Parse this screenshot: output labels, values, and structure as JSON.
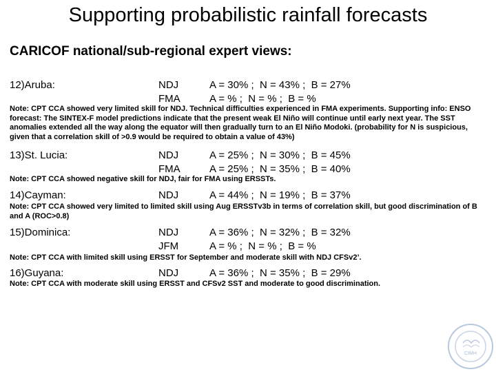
{
  "title": "Supporting probabilistic rainfall forecasts",
  "subtitle": "CARICOF national/sub-regional expert views:",
  "entries": [
    {
      "country": "12)Aruba:",
      "rows": [
        {
          "season": "NDJ",
          "probs": "A = 30% ;  N = 43% ;  B = 27%"
        },
        {
          "season": "FMA",
          "probs": "A = % ;  N = % ;  B = %"
        }
      ],
      "note": "Note: CPT CCA showed very limited skill for NDJ. Technical difficulties experienced in FMA experiments. Supporting info: ENSO forecast: The SINTEX-F model predictions indicate that the present weak El Niño will continue until early next year. The SST anomalies extended all the way along the equator will then gradually turn to an El Niño Modoki. (probability for N is suspicious, given that a correlation skill of >0.9 would be required to obtain a value of  43%)"
    },
    {
      "country": "13)St. Lucia:",
      "rows": [
        {
          "season": "NDJ",
          "probs": "A = 25% ;  N = 30% ;  B = 45%"
        },
        {
          "season": "FMA",
          "probs": "A = 25% ;  N = 35% ;  B = 40%"
        }
      ],
      "note": "Note:  CPT CCA showed negative skill for NDJ, fair for FMA using ERSSTs."
    },
    {
      "country": "14)Cayman:",
      "rows": [
        {
          "season": "NDJ",
          "probs": "A = 44% ;  N = 19% ;  B = 37%"
        }
      ],
      "note": "Note:  CPT CCA showed very limited to limited skill using Aug ERSSTv3b in terms of correlation skill, but good discrimination of B and A (ROC>0.8)"
    },
    {
      "country": "15)Dominica:",
      "rows": [
        {
          "season": "NDJ",
          "probs": "A = 36% ;  N = 32% ;  B = 32%"
        },
        {
          "season": "JFM",
          "probs": "A = % ;  N = % ;  B = %"
        }
      ],
      "note": "Note:  CPT CCA with limited skill using ERSST for September and moderate skill with NDJ CFSv2’."
    },
    {
      "country": "16)Guyana:",
      "rows": [
        {
          "season": "NDJ",
          "probs": "A = 36% ;  N = 35% ;  B = 29%"
        }
      ],
      "note": "Note: CPT CCA with moderate skill using ERSST and CFSv2 SST and moderate to good discrimination."
    }
  ],
  "logo": {
    "text": "CIMH",
    "icon": "cimh-seal-logo"
  }
}
